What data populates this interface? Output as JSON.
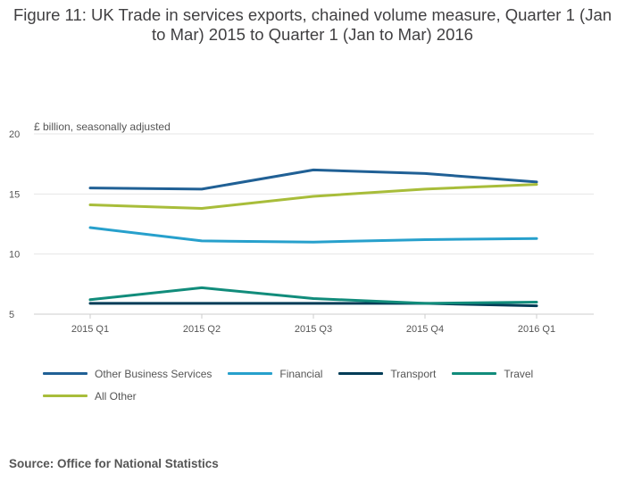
{
  "colors": {
    "other_business": "#206095",
    "financial": "#27A0CC",
    "transport": "#003C57",
    "travel": "#118C7B",
    "all_other": "#A8BD3A",
    "gridline": "#e6e6e6",
    "axis_line": "#cccccc"
  },
  "source": "Source: Office for National Statistics",
  "chart_data": {
    "type": "line",
    "title": "Figure 11: UK Trade in services exports, chained volume measure, Quarter 1 (Jan to Mar) 2015 to Quarter 1 (Jan to Mar) 2016",
    "unit_label": "£ billion, seasonally adjusted",
    "xlabel": "",
    "ylabel": "£ billion, seasonally adjusted",
    "categories": [
      "2015 Q1",
      "2015 Q2",
      "2015 Q3",
      "2015 Q4",
      "2016 Q1"
    ],
    "ylim": [
      5,
      20
    ],
    "yticks": [
      5,
      10,
      15,
      20
    ],
    "grid": true,
    "legend_position": "bottom",
    "series": [
      {
        "name": "Other Business Services",
        "color_key": "other_business",
        "values": [
          15.5,
          15.4,
          17.0,
          16.7,
          16.0
        ]
      },
      {
        "name": "Financial",
        "color_key": "financial",
        "values": [
          12.2,
          11.1,
          11.0,
          11.2,
          11.3
        ]
      },
      {
        "name": "Transport",
        "color_key": "transport",
        "values": [
          5.9,
          5.9,
          5.9,
          5.9,
          5.7
        ]
      },
      {
        "name": "Travel",
        "color_key": "travel",
        "values": [
          6.2,
          7.2,
          6.3,
          5.9,
          6.0
        ]
      },
      {
        "name": "All Other",
        "color_key": "all_other",
        "values": [
          14.1,
          13.8,
          14.8,
          15.4,
          15.8
        ]
      }
    ]
  }
}
